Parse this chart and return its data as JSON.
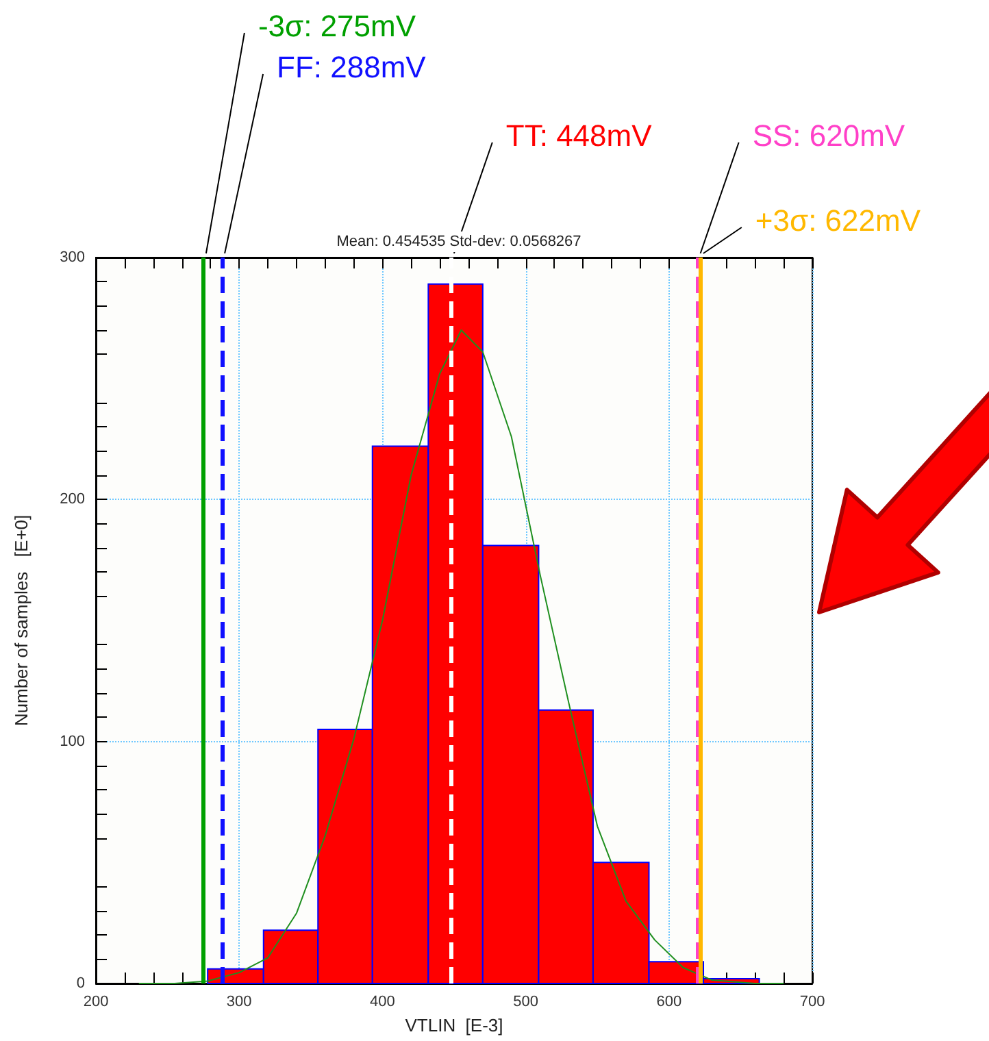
{
  "chart_data": {
    "type": "histogram",
    "title": "Mean: 0.454535 Std-dev: 0.0568267",
    "xlabel": "VTLIN  [E-3]",
    "ylabel": "Number of samples   [E+0]",
    "bins": [
      278,
      317,
      355,
      393,
      432,
      470,
      509,
      547,
      586,
      624,
      663
    ],
    "values": [
      6,
      22,
      105,
      222,
      289,
      181,
      113,
      50,
      9,
      2
    ],
    "color": "#ff0000",
    "series": [
      {
        "type": "line",
        "color": "#1f8f1f",
        "x": [
          230,
          255,
          278,
          300,
          320,
          340,
          360,
          380,
          400,
          420,
          440,
          455,
          470,
          490,
          510,
          530,
          550,
          570,
          590,
          610,
          630,
          660,
          680
        ],
        "values": [
          0,
          0,
          1,
          4.5,
          10.6,
          29,
          61,
          101,
          150,
          210,
          252,
          270,
          261,
          226,
          169,
          116,
          65,
          34,
          18,
          6.5,
          1.4,
          0,
          0
        ]
      }
    ],
    "xlim": [
      200,
      700
    ],
    "xticks": [
      200,
      300,
      400,
      500,
      600,
      700
    ],
    "ylim": [
      0,
      300
    ],
    "yticks": [
      0,
      100,
      200,
      300
    ],
    "grid": true,
    "ref_lines": [
      {
        "axis": "x",
        "value": 275,
        "label": "-3σ: 275mV",
        "color": "#00a000",
        "line_style": "solid"
      },
      {
        "axis": "x",
        "value": 288,
        "label": "FF: 288mV",
        "color": "#1010ff",
        "line_style": "dashed"
      },
      {
        "axis": "x",
        "value": 448,
        "label": "TT: 448mV",
        "color": "#ffffff",
        "line_style": "dashed"
      },
      {
        "axis": "x",
        "value": 620,
        "label": "SS: 620mV",
        "color": "#ff40c8",
        "line_style": "dashed"
      },
      {
        "axis": "x",
        "value": 622,
        "label": "+3σ: 622mV",
        "color": "#ffb800",
        "line_style": "solid"
      }
    ]
  }
}
